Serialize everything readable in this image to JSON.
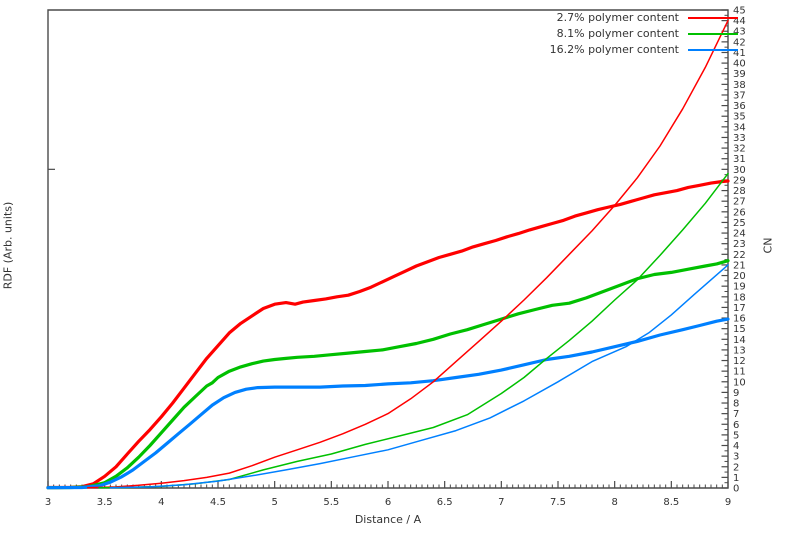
{
  "chart_data": {
    "type": "line",
    "title": "",
    "xlabel": "Distance / A",
    "ylabel_left": "RDF (Arb. units)",
    "ylabel_right": "CN",
    "xlim": [
      3,
      9
    ],
    "ylim_right": [
      0,
      45
    ],
    "grid": false,
    "legend_position": "top-right-inside",
    "background": "#ffffff",
    "axis_color": "#4a4a4a",
    "text_color": "#333333",
    "x_major_step": 0.5,
    "x_minor_step": 0.05,
    "x_tick_labels": [
      "3",
      "3.5",
      "4",
      "4.5",
      "5",
      "5.5",
      "6",
      "6.5",
      "7",
      "7.5",
      "8",
      "8.5",
      "9"
    ],
    "right_tick_major_step": 1,
    "right_tick_minor_step": 0.5,
    "left_axis_unlabeled_tick_values": [
      0,
      30
    ],
    "legend": [
      {
        "label": "2.7% polymer content",
        "color": "#ff0000"
      },
      {
        "label": "8.1% polymer content",
        "color": "#00c000"
      },
      {
        "label": "16.2% polymer content",
        "color": "#0080ff"
      }
    ],
    "series": [
      {
        "name": "RDF 2.7% polymer content",
        "kind": "rdf",
        "axis": "left-arb-units",
        "color": "#ff0000",
        "width": 3.2,
        "points": [
          [
            3.0,
            0.05
          ],
          [
            3.1,
            0.05
          ],
          [
            3.2,
            0.07
          ],
          [
            3.3,
            0.12
          ],
          [
            3.4,
            0.4
          ],
          [
            3.5,
            1.1
          ],
          [
            3.6,
            2.0
          ],
          [
            3.7,
            3.2
          ],
          [
            3.8,
            4.4
          ],
          [
            3.9,
            5.5
          ],
          [
            4.0,
            6.7
          ],
          [
            4.1,
            8.0
          ],
          [
            4.2,
            9.4
          ],
          [
            4.3,
            10.8
          ],
          [
            4.4,
            12.2
          ],
          [
            4.5,
            13.4
          ],
          [
            4.6,
            14.6
          ],
          [
            4.7,
            15.5
          ],
          [
            4.8,
            16.2
          ],
          [
            4.9,
            16.9
          ],
          [
            5.0,
            17.3
          ],
          [
            5.1,
            17.45
          ],
          [
            5.18,
            17.3
          ],
          [
            5.25,
            17.5
          ],
          [
            5.35,
            17.65
          ],
          [
            5.45,
            17.8
          ],
          [
            5.55,
            18.0
          ],
          [
            5.65,
            18.15
          ],
          [
            5.75,
            18.5
          ],
          [
            5.85,
            18.9
          ],
          [
            5.95,
            19.4
          ],
          [
            6.05,
            19.9
          ],
          [
            6.15,
            20.4
          ],
          [
            6.25,
            20.9
          ],
          [
            6.35,
            21.3
          ],
          [
            6.45,
            21.7
          ],
          [
            6.55,
            22.0
          ],
          [
            6.65,
            22.3
          ],
          [
            6.75,
            22.7
          ],
          [
            6.85,
            23.0
          ],
          [
            6.95,
            23.3
          ],
          [
            7.05,
            23.65
          ],
          [
            7.15,
            23.95
          ],
          [
            7.25,
            24.3
          ],
          [
            7.35,
            24.6
          ],
          [
            7.45,
            24.9
          ],
          [
            7.55,
            25.2
          ],
          [
            7.65,
            25.6
          ],
          [
            7.75,
            25.9
          ],
          [
            7.85,
            26.2
          ],
          [
            7.95,
            26.45
          ],
          [
            8.05,
            26.7
          ],
          [
            8.15,
            27.0
          ],
          [
            8.25,
            27.3
          ],
          [
            8.35,
            27.6
          ],
          [
            8.45,
            27.8
          ],
          [
            8.55,
            28.0
          ],
          [
            8.65,
            28.3
          ],
          [
            8.75,
            28.5
          ],
          [
            8.85,
            28.7
          ],
          [
            8.95,
            28.85
          ],
          [
            9.0,
            28.9
          ]
        ]
      },
      {
        "name": "RDF 8.1% polymer content",
        "kind": "rdf",
        "axis": "left-arb-units",
        "color": "#00c000",
        "width": 3.2,
        "points": [
          [
            3.0,
            0.03
          ],
          [
            3.2,
            0.05
          ],
          [
            3.35,
            0.1
          ],
          [
            3.5,
            0.5
          ],
          [
            3.6,
            1.1
          ],
          [
            3.7,
            1.9
          ],
          [
            3.8,
            2.9
          ],
          [
            3.9,
            4.0
          ],
          [
            4.0,
            5.2
          ],
          [
            4.1,
            6.4
          ],
          [
            4.2,
            7.6
          ],
          [
            4.3,
            8.6
          ],
          [
            4.4,
            9.6
          ],
          [
            4.45,
            9.9
          ],
          [
            4.5,
            10.4
          ],
          [
            4.6,
            11.0
          ],
          [
            4.7,
            11.4
          ],
          [
            4.8,
            11.7
          ],
          [
            4.9,
            11.95
          ],
          [
            5.0,
            12.1
          ],
          [
            5.1,
            12.2
          ],
          [
            5.2,
            12.3
          ],
          [
            5.35,
            12.4
          ],
          [
            5.5,
            12.55
          ],
          [
            5.65,
            12.7
          ],
          [
            5.8,
            12.85
          ],
          [
            5.95,
            13.0
          ],
          [
            6.1,
            13.3
          ],
          [
            6.25,
            13.6
          ],
          [
            6.4,
            14.0
          ],
          [
            6.55,
            14.5
          ],
          [
            6.7,
            14.9
          ],
          [
            6.85,
            15.4
          ],
          [
            7.0,
            15.9
          ],
          [
            7.15,
            16.4
          ],
          [
            7.3,
            16.8
          ],
          [
            7.45,
            17.2
          ],
          [
            7.6,
            17.4
          ],
          [
            7.75,
            17.9
          ],
          [
            7.9,
            18.5
          ],
          [
            8.05,
            19.1
          ],
          [
            8.2,
            19.7
          ],
          [
            8.35,
            20.1
          ],
          [
            8.5,
            20.3
          ],
          [
            8.65,
            20.6
          ],
          [
            8.8,
            20.9
          ],
          [
            8.9,
            21.1
          ],
          [
            9.0,
            21.4
          ]
        ]
      },
      {
        "name": "RDF 16.2% polymer content",
        "kind": "rdf",
        "axis": "left-arb-units",
        "color": "#0080ff",
        "width": 3.2,
        "points": [
          [
            3.0,
            0.03
          ],
          [
            3.3,
            0.05
          ],
          [
            3.45,
            0.2
          ],
          [
            3.55,
            0.55
          ],
          [
            3.65,
            1.05
          ],
          [
            3.75,
            1.7
          ],
          [
            3.85,
            2.5
          ],
          [
            3.95,
            3.3
          ],
          [
            4.05,
            4.2
          ],
          [
            4.15,
            5.1
          ],
          [
            4.25,
            6.0
          ],
          [
            4.35,
            6.9
          ],
          [
            4.45,
            7.8
          ],
          [
            4.55,
            8.5
          ],
          [
            4.65,
            9.0
          ],
          [
            4.75,
            9.3
          ],
          [
            4.85,
            9.45
          ],
          [
            5.0,
            9.5
          ],
          [
            5.2,
            9.5
          ],
          [
            5.4,
            9.5
          ],
          [
            5.6,
            9.6
          ],
          [
            5.8,
            9.65
          ],
          [
            6.0,
            9.8
          ],
          [
            6.2,
            9.9
          ],
          [
            6.4,
            10.1
          ],
          [
            6.6,
            10.4
          ],
          [
            6.8,
            10.7
          ],
          [
            7.0,
            11.1
          ],
          [
            7.2,
            11.6
          ],
          [
            7.4,
            12.1
          ],
          [
            7.6,
            12.4
          ],
          [
            7.8,
            12.8
          ],
          [
            8.0,
            13.3
          ],
          [
            8.2,
            13.8
          ],
          [
            8.4,
            14.4
          ],
          [
            8.6,
            14.9
          ],
          [
            8.75,
            15.3
          ],
          [
            8.9,
            15.7
          ],
          [
            9.0,
            15.9
          ]
        ]
      },
      {
        "name": "CN 2.7% polymer content",
        "kind": "cn",
        "axis": "right",
        "color": "#ff0000",
        "width": 1.5,
        "points": [
          [
            3.35,
            0.02
          ],
          [
            3.6,
            0.1
          ],
          [
            3.8,
            0.25
          ],
          [
            4.0,
            0.45
          ],
          [
            4.2,
            0.7
          ],
          [
            4.4,
            1.0
          ],
          [
            4.6,
            1.4
          ],
          [
            4.8,
            2.1
          ],
          [
            5.0,
            2.9
          ],
          [
            5.2,
            3.6
          ],
          [
            5.4,
            4.3
          ],
          [
            5.6,
            5.1
          ],
          [
            5.8,
            6.0
          ],
          [
            6.0,
            7.0
          ],
          [
            6.2,
            8.4
          ],
          [
            6.4,
            10.0
          ],
          [
            6.6,
            11.9
          ],
          [
            6.8,
            13.8
          ],
          [
            7.0,
            15.7
          ],
          [
            7.2,
            17.7
          ],
          [
            7.4,
            19.8
          ],
          [
            7.6,
            22.0
          ],
          [
            7.8,
            24.2
          ],
          [
            8.0,
            26.6
          ],
          [
            8.2,
            29.2
          ],
          [
            8.4,
            32.2
          ],
          [
            8.6,
            35.7
          ],
          [
            8.8,
            39.6
          ],
          [
            9.0,
            44.0
          ]
        ]
      },
      {
        "name": "CN 8.1% polymer content",
        "kind": "cn",
        "axis": "right",
        "color": "#00c000",
        "width": 1.5,
        "points": [
          [
            3.45,
            0.02
          ],
          [
            3.7,
            0.05
          ],
          [
            4.0,
            0.15
          ],
          [
            4.3,
            0.4
          ],
          [
            4.6,
            0.8
          ],
          [
            4.9,
            1.7
          ],
          [
            5.2,
            2.5
          ],
          [
            5.5,
            3.2
          ],
          [
            5.8,
            4.1
          ],
          [
            6.1,
            4.9
          ],
          [
            6.4,
            5.7
          ],
          [
            6.7,
            6.9
          ],
          [
            7.0,
            8.9
          ],
          [
            7.2,
            10.4
          ],
          [
            7.4,
            12.2
          ],
          [
            7.6,
            13.9
          ],
          [
            7.8,
            15.7
          ],
          [
            8.0,
            17.7
          ],
          [
            8.2,
            19.6
          ],
          [
            8.4,
            21.9
          ],
          [
            8.6,
            24.3
          ],
          [
            8.8,
            26.8
          ],
          [
            9.0,
            29.6
          ]
        ]
      },
      {
        "name": "CN 16.2% polymer content",
        "kind": "cn",
        "axis": "right",
        "color": "#0080ff",
        "width": 1.5,
        "points": [
          [
            3.55,
            0.02
          ],
          [
            3.9,
            0.1
          ],
          [
            4.2,
            0.3
          ],
          [
            4.5,
            0.65
          ],
          [
            4.8,
            1.15
          ],
          [
            5.1,
            1.7
          ],
          [
            5.4,
            2.3
          ],
          [
            5.7,
            2.95
          ],
          [
            6.0,
            3.6
          ],
          [
            6.3,
            4.5
          ],
          [
            6.6,
            5.4
          ],
          [
            6.9,
            6.6
          ],
          [
            7.2,
            8.2
          ],
          [
            7.5,
            10.0
          ],
          [
            7.8,
            11.9
          ],
          [
            8.1,
            13.3
          ],
          [
            8.3,
            14.6
          ],
          [
            8.5,
            16.3
          ],
          [
            8.7,
            18.2
          ],
          [
            8.85,
            19.6
          ],
          [
            9.0,
            21.0
          ]
        ]
      }
    ]
  }
}
